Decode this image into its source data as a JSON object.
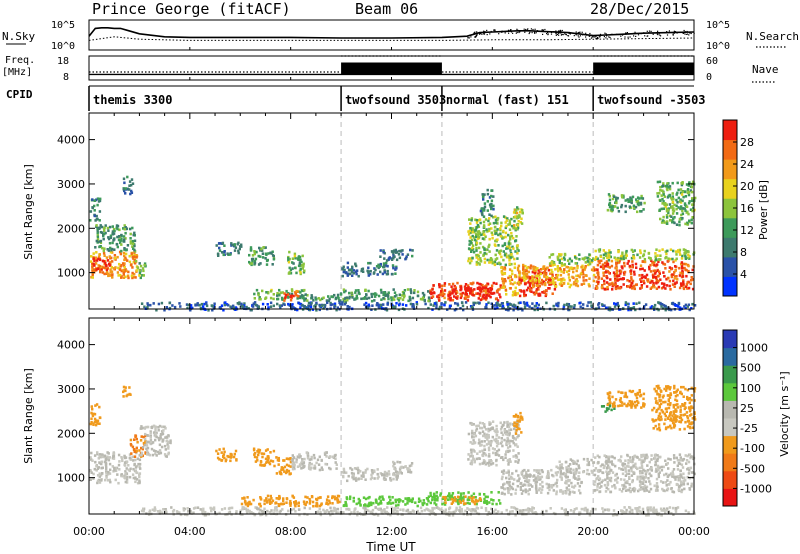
{
  "header": {
    "title": "Prince George (fitACF)",
    "beam": "Beam 06",
    "date": "28/Dec/2015"
  },
  "colors": {
    "power_scale": [
      "#0033ff",
      "#2a52a8",
      "#3d7a6e",
      "#3d9a5a",
      "#8cc43c",
      "#e8d21e",
      "#f29a1a",
      "#f26a14",
      "#ee1e10"
    ],
    "velocity_scale": [
      "#e81414",
      "#ee4a14",
      "#f07a18",
      "#f09a1c",
      "#c8c8c0",
      "#b8b8b0",
      "#5cc83c",
      "#3a9a4c",
      "#2a6aa0",
      "#2a3ab4"
    ]
  },
  "chart_data": [
    {
      "type": "line",
      "name": "sky-noise-panel",
      "ylabel": "N.Sky",
      "right_label": "N.Search",
      "yticks_left": [
        "10^5",
        "10^0"
      ],
      "yticks_right": [
        "10^5",
        "10^0"
      ],
      "x_range_hours": [
        0,
        24
      ],
      "series": [
        {
          "key": "sky",
          "x": [
            0,
            0.25,
            0.5,
            0.75,
            1,
            1.25,
            1.5,
            2,
            3,
            4,
            6,
            8,
            10,
            12,
            14,
            15,
            15.5,
            16,
            16.5,
            17,
            17.5,
            18,
            19,
            20,
            20.5,
            21,
            22,
            23,
            24
          ],
          "y": [
            2.3,
            3.6,
            3.7,
            3.7,
            3.6,
            3.6,
            3.3,
            2.7,
            2.2,
            2.1,
            2.1,
            2.1,
            2.0,
            2.0,
            2.1,
            2.3,
            2.9,
            3.0,
            3.1,
            3.2,
            3.2,
            3.1,
            2.9,
            2.4,
            2.5,
            2.6,
            2.8,
            2.9,
            3.0
          ]
        },
        {
          "key": "search",
          "x": [
            0,
            1,
            2,
            4,
            6,
            8,
            10,
            12,
            14,
            16,
            18,
            20,
            22,
            24
          ],
          "y": [
            1.6,
            2.2,
            1.8,
            1.6,
            1.6,
            1.6,
            1.6,
            1.6,
            1.6,
            1.7,
            1.7,
            1.8,
            1.9,
            2.0
          ]
        }
      ]
    },
    {
      "type": "line",
      "name": "frequency-panel",
      "ylabel_line1": "Freq.",
      "ylabel_line2": "[MHz]",
      "right_label": "Nave",
      "yticks_left": [
        "18",
        "8"
      ],
      "yticks_right": [
        "60",
        "0"
      ],
      "x_range_hours": [
        0,
        24
      ],
      "freq_mhz": [
        {
          "x0": 0,
          "x1": 24,
          "y": 10.3
        }
      ],
      "nave": [
        {
          "x0": 0,
          "x1": 10,
          "y": 20
        },
        {
          "x0": 10,
          "x1": 14,
          "y": 60
        },
        {
          "x0": 14,
          "x1": 20,
          "y": 20
        },
        {
          "x0": 20,
          "x1": 24,
          "y": 60
        }
      ],
      "dense_blocks": [
        [
          10,
          14
        ],
        [
          20,
          24
        ]
      ]
    },
    {
      "type": "table",
      "name": "cpid-strip",
      "label": "CPID",
      "segments": [
        {
          "start": 0,
          "end": 10,
          "text": "themis 3300"
        },
        {
          "start": 10,
          "end": 14,
          "text": "twofsound 3503"
        },
        {
          "start": 14,
          "end": 20,
          "text": "normal (fast) 151"
        },
        {
          "start": 20,
          "end": 24,
          "text": "twofsound -3503"
        }
      ]
    },
    {
      "type": "heatmap",
      "name": "power-panel",
      "ylabel": "Slant Range [km]",
      "ylim": [
        180,
        4600
      ],
      "yticks": [
        1000,
        2000,
        3000,
        4000
      ],
      "colorbar_label": "Power [dB]",
      "colorbar_ticks": [
        "4",
        "8",
        "12",
        "16",
        "20",
        "24",
        "28"
      ],
      "colorbar_range": [
        0,
        32
      ],
      "regions": [
        {
          "x0": 0.0,
          "x1": 1.9,
          "y0": 900,
          "y1": 1500,
          "v": 24
        },
        {
          "x0": 0.1,
          "x1": 0.8,
          "y0": 1050,
          "y1": 1350,
          "v": 30
        },
        {
          "x0": 0.2,
          "x1": 1.8,
          "y0": 1500,
          "y1": 2100,
          "v": 12
        },
        {
          "x0": 0.0,
          "x1": 0.4,
          "y0": 2200,
          "y1": 2700,
          "v": 10
        },
        {
          "x0": 1.3,
          "x1": 1.7,
          "y0": 2800,
          "y1": 3200,
          "v": 8
        },
        {
          "x0": 1.8,
          "x1": 2.2,
          "y0": 900,
          "y1": 1300,
          "v": 14
        },
        {
          "x0": 5.0,
          "x1": 6.0,
          "y0": 1400,
          "y1": 1700,
          "v": 8
        },
        {
          "x0": 6.3,
          "x1": 7.3,
          "y0": 1200,
          "y1": 1600,
          "v": 12
        },
        {
          "x0": 7.8,
          "x1": 8.5,
          "y0": 1000,
          "y1": 1500,
          "v": 14
        },
        {
          "x0": 6.5,
          "x1": 8.5,
          "y0": 420,
          "y1": 650,
          "v": 14
        },
        {
          "x0": 7.7,
          "x1": 8.3,
          "y0": 380,
          "y1": 620,
          "v": 28
        },
        {
          "x0": 8.4,
          "x1": 10.0,
          "y0": 380,
          "y1": 560,
          "v": 12
        },
        {
          "x0": 10.0,
          "x1": 12.2,
          "y0": 950,
          "y1": 1250,
          "v": 8
        },
        {
          "x0": 11.5,
          "x1": 12.8,
          "y0": 1300,
          "y1": 1550,
          "v": 8
        },
        {
          "x0": 10.0,
          "x1": 13.5,
          "y0": 380,
          "y1": 650,
          "v": 12
        },
        {
          "x0": 13.5,
          "x1": 16.3,
          "y0": 400,
          "y1": 800,
          "v": 28
        },
        {
          "x0": 14.2,
          "x1": 16.0,
          "y0": 450,
          "y1": 720,
          "v": 32
        },
        {
          "x0": 16.3,
          "x1": 17.0,
          "y0": 500,
          "y1": 1150,
          "v": 22
        },
        {
          "x0": 17.0,
          "x1": 18.5,
          "y0": 500,
          "y1": 1100,
          "v": 30
        },
        {
          "x0": 15.0,
          "x1": 17.0,
          "y0": 1200,
          "y1": 2300,
          "v": 16
        },
        {
          "x0": 15.5,
          "x1": 16.0,
          "y0": 2300,
          "y1": 2900,
          "v": 10
        },
        {
          "x0": 16.8,
          "x1": 17.2,
          "y0": 2000,
          "y1": 2500,
          "v": 18
        },
        {
          "x0": 17.0,
          "x1": 20.0,
          "y0": 700,
          "y1": 1200,
          "v": 22
        },
        {
          "x0": 18.2,
          "x1": 20.0,
          "y0": 1200,
          "y1": 1450,
          "v": 16
        },
        {
          "x0": 20.0,
          "x1": 24.0,
          "y0": 650,
          "y1": 1300,
          "v": 28
        },
        {
          "x0": 20.0,
          "x1": 24.0,
          "y0": 1300,
          "y1": 1550,
          "v": 16
        },
        {
          "x0": 20.5,
          "x1": 22.0,
          "y0": 2400,
          "y1": 2800,
          "v": 12
        },
        {
          "x0": 22.5,
          "x1": 24.0,
          "y0": 2100,
          "y1": 3100,
          "v": 14
        },
        {
          "x0": 2.0,
          "x1": 24.0,
          "y0": 180,
          "y1": 360,
          "v": 6
        }
      ]
    },
    {
      "type": "heatmap",
      "name": "velocity-panel",
      "ylabel": "Slant Range [km]",
      "ylim": [
        180,
        4600
      ],
      "yticks": [
        1000,
        2000,
        3000,
        4000
      ],
      "colorbar_label": "Velocity [m s⁻¹]",
      "colorbar_ticks": [
        "1000",
        "500",
        "100",
        "25",
        "-25",
        "-100",
        "-500",
        "-1000"
      ],
      "regions": [
        {
          "x0": 0.0,
          "x1": 2.0,
          "y0": 900,
          "y1": 1600,
          "v": 0
        },
        {
          "x0": 0.0,
          "x1": 0.4,
          "y0": 2200,
          "y1": 2700,
          "v": -300
        },
        {
          "x0": 1.3,
          "x1": 1.6,
          "y0": 2800,
          "y1": 3100,
          "v": -300
        },
        {
          "x0": 1.6,
          "x1": 2.2,
          "y0": 1500,
          "y1": 2000,
          "v": -600
        },
        {
          "x0": 2.0,
          "x1": 3.2,
          "y0": 1500,
          "y1": 2200,
          "v": 0
        },
        {
          "x0": 5.0,
          "x1": 5.8,
          "y0": 1400,
          "y1": 1700,
          "v": -300
        },
        {
          "x0": 6.5,
          "x1": 7.3,
          "y0": 1300,
          "y1": 1700,
          "v": -300
        },
        {
          "x0": 7.3,
          "x1": 8.0,
          "y0": 1100,
          "y1": 1500,
          "v": -300
        },
        {
          "x0": 8.0,
          "x1": 9.8,
          "y0": 1200,
          "y1": 1600,
          "v": 0
        },
        {
          "x0": 10.0,
          "x1": 12.3,
          "y0": 950,
          "y1": 1250,
          "v": 0
        },
        {
          "x0": 12.0,
          "x1": 12.8,
          "y0": 1100,
          "y1": 1400,
          "v": 0
        },
        {
          "x0": 6.0,
          "x1": 10.0,
          "y0": 380,
          "y1": 620,
          "v": -150
        },
        {
          "x0": 10.0,
          "x1": 13.5,
          "y0": 380,
          "y1": 600,
          "v": 50
        },
        {
          "x0": 13.5,
          "x1": 16.3,
          "y0": 420,
          "y1": 700,
          "v": 60
        },
        {
          "x0": 14.0,
          "x1": 15.5,
          "y0": 430,
          "y1": 600,
          "v": -150
        },
        {
          "x0": 15.0,
          "x1": 17.0,
          "y0": 1300,
          "y1": 2300,
          "v": 0
        },
        {
          "x0": 16.8,
          "x1": 17.2,
          "y0": 2000,
          "y1": 2500,
          "v": -300
        },
        {
          "x0": 16.3,
          "x1": 19.5,
          "y0": 650,
          "y1": 1200,
          "v": 0
        },
        {
          "x0": 18.5,
          "x1": 20.0,
          "y0": 1100,
          "y1": 1450,
          "v": 0
        },
        {
          "x0": 20.0,
          "x1": 24.0,
          "y0": 700,
          "y1": 1550,
          "v": 0
        },
        {
          "x0": 20.3,
          "x1": 20.8,
          "y0": 2500,
          "y1": 2700,
          "v": 200
        },
        {
          "x0": 20.5,
          "x1": 22.0,
          "y0": 2600,
          "y1": 3000,
          "v": -300
        },
        {
          "x0": 22.3,
          "x1": 24.0,
          "y0": 2100,
          "y1": 3100,
          "v": -300
        },
        {
          "x0": 2.0,
          "x1": 24.0,
          "y0": 180,
          "y1": 360,
          "v": -30
        }
      ]
    }
  ],
  "xaxis": {
    "label": "Time UT",
    "ticks": [
      "00:00",
      "04:00",
      "08:00",
      "12:00",
      "16:00",
      "20:00",
      "00:00"
    ],
    "range_hours": [
      0,
      24
    ]
  }
}
